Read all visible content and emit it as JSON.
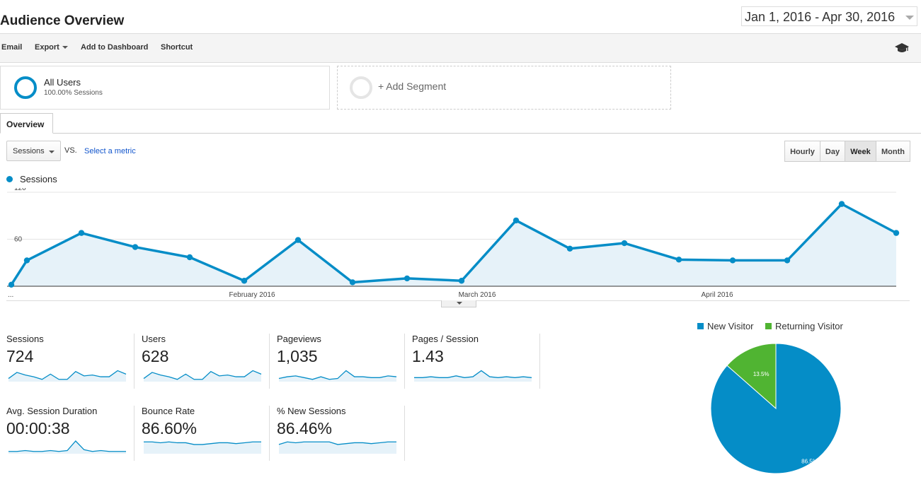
{
  "header": {
    "title": "Audience Overview",
    "date_range": "Jan 1, 2016 - Apr 30, 2016"
  },
  "toolbar": {
    "email": "Email",
    "export": "Export",
    "add_to_dashboard": "Add to Dashboard",
    "shortcut": "Shortcut",
    "icon": "graduation-cap-icon"
  },
  "segments": {
    "all_users": {
      "name": "All Users",
      "sub": "100.00% Sessions"
    },
    "add": "+ Add Segment"
  },
  "tabs": {
    "overview": "Overview"
  },
  "controls": {
    "metric_select": "Sessions",
    "vs": "VS.",
    "select_metric": "Select a metric",
    "periods": [
      "Hourly",
      "Day",
      "Week",
      "Month"
    ],
    "active_period": "Week"
  },
  "chart_data": {
    "type": "area",
    "series": [
      {
        "name": "Sessions",
        "values": [
          2,
          33,
          68,
          50,
          37,
          7,
          59,
          5,
          10,
          7,
          84,
          48,
          55,
          34,
          33,
          33,
          105,
          68
        ]
      }
    ],
    "x_tick_labels": [
      "...",
      "February 2016",
      "March 2016",
      "April 2016"
    ],
    "y_tick_labels": [
      "120",
      "60"
    ],
    "ylim": [
      0,
      120
    ],
    "color": "#058dc7",
    "grid": true,
    "legend": "top-left"
  },
  "metrics": [
    {
      "label": "Sessions",
      "value": "724",
      "spark": [
        2,
        9,
        6,
        4,
        1,
        7,
        1,
        1,
        10,
        5,
        6,
        4,
        4,
        11,
        7
      ]
    },
    {
      "label": "Users",
      "value": "628",
      "spark": [
        2,
        9,
        6,
        4,
        1,
        7,
        1,
        1,
        10,
        5,
        6,
        4,
        4,
        11,
        7
      ]
    },
    {
      "label": "Pageviews",
      "value": "1,035",
      "spark": [
        2,
        4,
        5,
        3,
        1,
        4,
        1,
        2,
        11,
        4,
        4,
        3,
        3,
        5,
        4
      ]
    },
    {
      "label": "Pages / Session",
      "value": "1.43",
      "spark": [
        3,
        3,
        4,
        3,
        3,
        5,
        3,
        4,
        11,
        4,
        3,
        4,
        3,
        4,
        3
      ]
    },
    {
      "label": "Avg. Session Duration",
      "value": "00:00:38",
      "spark": [
        1,
        1,
        2,
        1,
        1,
        2,
        1,
        2,
        13,
        3,
        1,
        2,
        1,
        1,
        1
      ]
    },
    {
      "label": "Bounce Rate",
      "value": "86.60%",
      "spark": [
        12,
        12,
        11,
        12,
        11,
        11,
        9,
        9,
        10,
        11,
        11,
        10,
        11,
        12,
        12
      ]
    },
    {
      "label": "% New Sessions",
      "value": "86.46%",
      "spark": [
        9,
        12,
        11,
        12,
        12,
        12,
        12,
        9,
        10,
        11,
        11,
        10,
        11,
        12,
        12
      ]
    }
  ],
  "pie": {
    "type": "pie",
    "slices": [
      {
        "name": "New Visitor",
        "value": 86.5,
        "label": "86.5%",
        "color": "#058dc7"
      },
      {
        "name": "Returning Visitor",
        "value": 13.5,
        "label": "13.5%",
        "color": "#50b432"
      }
    ]
  }
}
